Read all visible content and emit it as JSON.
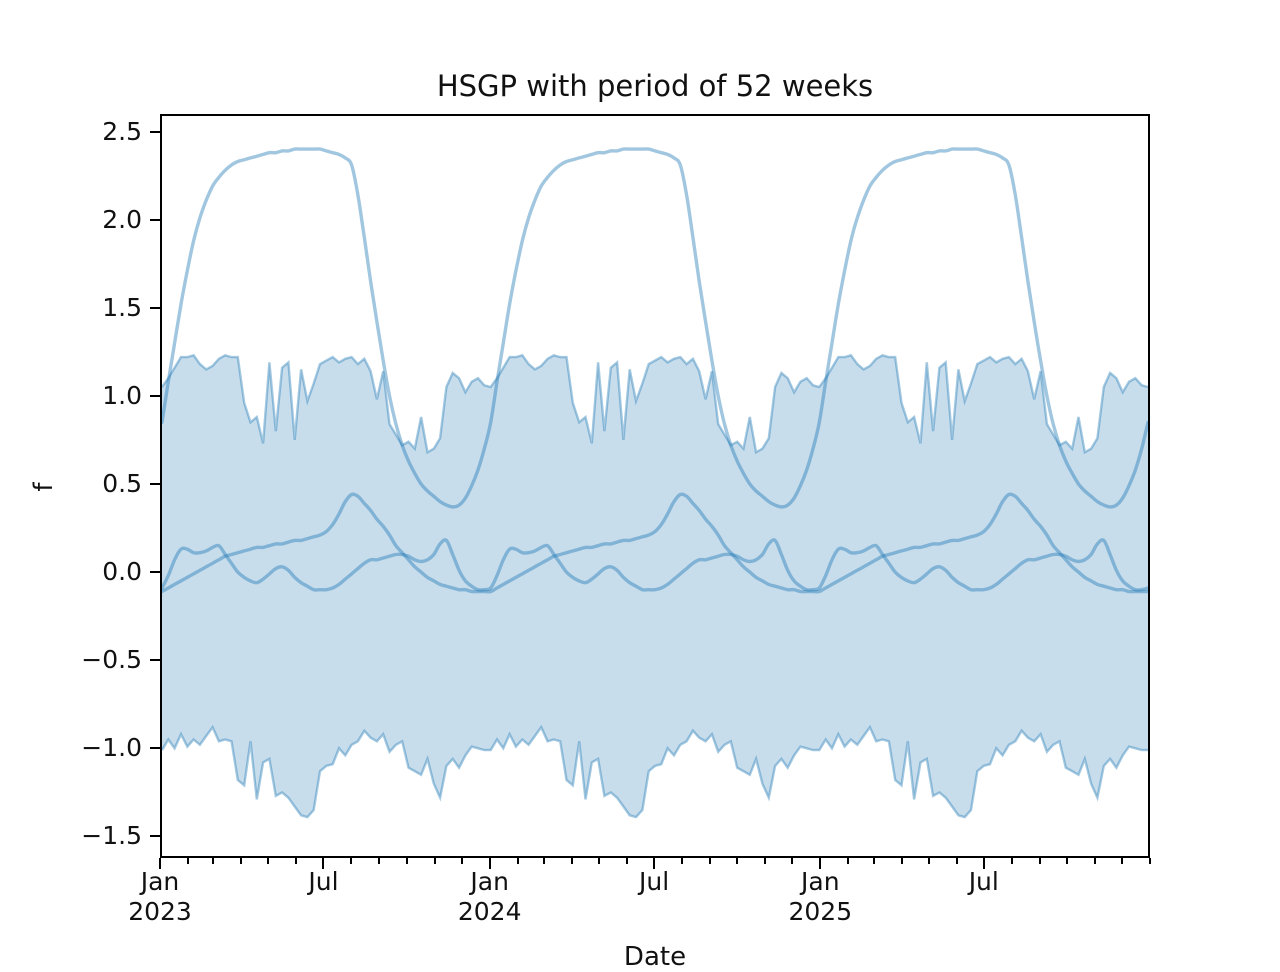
{
  "figure": {
    "title": "HSGP with period of 52 weeks",
    "xlabel": "Date",
    "ylabel": "f"
  },
  "axes": {
    "y_ticks": [
      {
        "label": "2.5",
        "value": 2.5
      },
      {
        "label": "2.0",
        "value": 2.0
      },
      {
        "label": "1.5",
        "value": 1.5
      },
      {
        "label": "1.0",
        "value": 1.0
      },
      {
        "label": "0.5",
        "value": 0.5
      },
      {
        "label": "0.0",
        "value": 0.0
      },
      {
        "label": "−0.5",
        "value": -0.5
      },
      {
        "label": "−1.0",
        "value": -1.0
      },
      {
        "label": "−1.5",
        "value": -1.5
      }
    ],
    "x_major_ticks": [
      {
        "month_index": 0,
        "lines": [
          "Jan",
          "2023"
        ]
      },
      {
        "month_index": 6,
        "lines": [
          "Jul"
        ]
      },
      {
        "month_index": 12,
        "lines": [
          "Jan",
          "2024"
        ]
      },
      {
        "month_index": 18,
        "lines": [
          "Jul"
        ]
      },
      {
        "month_index": 24,
        "lines": [
          "Jan",
          "2025"
        ]
      },
      {
        "month_index": 30,
        "lines": [
          "Jul"
        ]
      }
    ],
    "month_lengths": [
      31,
      28,
      31,
      30,
      31,
      30,
      31,
      31,
      30,
      31,
      30,
      31,
      31,
      29,
      31,
      30,
      31,
      30,
      31,
      31,
      30,
      31,
      30,
      31,
      31,
      28,
      31,
      30,
      31,
      30,
      31,
      31,
      30,
      31,
      30,
      31
    ],
    "ylim": [
      -1.611,
      2.588
    ],
    "grid": false,
    "legend": "none"
  },
  "chart_data": {
    "type": "line",
    "title": "HSGP with period of 52 weeks",
    "xlabel": "Date",
    "ylabel": "f",
    "x_start": "Jan 2023",
    "x_end": "Dec 2025",
    "period_weeks": 52,
    "n_periods": 3,
    "x_unit": "weeks (one 52-week period per array, tiled 3 times)",
    "band": {
      "name": "hdi-band",
      "upper": [
        1.05,
        1.1,
        1.16,
        1.22,
        1.22,
        1.23,
        1.18,
        1.15,
        1.17,
        1.21,
        1.23,
        1.22,
        1.22,
        0.96,
        0.85,
        0.88,
        0.73,
        1.19,
        0.8,
        1.16,
        1.19,
        0.75,
        1.15,
        0.97,
        1.07,
        1.18,
        1.2,
        1.22,
        1.19,
        1.21,
        1.22,
        1.18,
        1.21,
        1.14,
        0.98,
        1.14,
        0.84,
        0.78,
        0.72,
        0.74,
        0.7,
        0.88,
        0.68,
        0.7,
        0.76,
        1.05,
        1.13,
        1.1,
        1.02,
        1.08,
        1.1,
        1.06
      ],
      "lower": [
        -1.01,
        -0.95,
        -1.0,
        -0.92,
        -0.99,
        -0.95,
        -0.98,
        -0.93,
        -0.88,
        -0.96,
        -0.95,
        -0.96,
        -1.18,
        -1.21,
        -0.96,
        -1.29,
        -1.08,
        -1.06,
        -1.27,
        -1.25,
        -1.28,
        -1.33,
        -1.38,
        -1.39,
        -1.35,
        -1.13,
        -1.1,
        -1.09,
        -1.0,
        -1.04,
        -0.98,
        -0.96,
        -0.9,
        -0.94,
        -0.96,
        -0.92,
        -1.02,
        -0.98,
        -0.96,
        -1.11,
        -1.13,
        -1.15,
        -1.06,
        -1.2,
        -1.28,
        -1.1,
        -1.06,
        -1.11,
        -1.04,
        -0.99,
        -1.0,
        -1.01
      ]
    },
    "series": [
      {
        "name": "gp-sample-large",
        "values": [
          0.85,
          1.08,
          1.3,
          1.52,
          1.71,
          1.88,
          2.01,
          2.11,
          2.19,
          2.24,
          2.28,
          2.31,
          2.33,
          2.34,
          2.35,
          2.36,
          2.37,
          2.38,
          2.38,
          2.39,
          2.39,
          2.4,
          2.4,
          2.4,
          2.4,
          2.4,
          2.39,
          2.38,
          2.37,
          2.35,
          2.31,
          2.14,
          1.9,
          1.65,
          1.42,
          1.2,
          1.0,
          0.84,
          0.72,
          0.63,
          0.56,
          0.5,
          0.46,
          0.43,
          0.4,
          0.38,
          0.37,
          0.38,
          0.42,
          0.49,
          0.58,
          0.7
        ]
      },
      {
        "name": "gp-sample-medium",
        "values": [
          -0.11,
          -0.09,
          -0.07,
          -0.05,
          -0.03,
          -0.01,
          0.01,
          0.03,
          0.05,
          0.07,
          0.09,
          0.1,
          0.11,
          0.12,
          0.13,
          0.14,
          0.14,
          0.15,
          0.16,
          0.16,
          0.17,
          0.18,
          0.18,
          0.19,
          0.2,
          0.21,
          0.23,
          0.27,
          0.33,
          0.4,
          0.44,
          0.43,
          0.39,
          0.35,
          0.3,
          0.26,
          0.21,
          0.15,
          0.11,
          0.07,
          0.03,
          0.0,
          -0.03,
          -0.05,
          -0.07,
          -0.08,
          -0.09,
          -0.1,
          -0.1,
          -0.11,
          -0.11,
          -0.11
        ]
      },
      {
        "name": "gp-sample-small",
        "values": [
          -0.09,
          -0.02,
          0.07,
          0.13,
          0.13,
          0.11,
          0.11,
          0.12,
          0.14,
          0.15,
          0.1,
          0.05,
          0.0,
          -0.03,
          -0.05,
          -0.06,
          -0.04,
          -0.01,
          0.02,
          0.03,
          0.01,
          -0.03,
          -0.06,
          -0.08,
          -0.1,
          -0.1,
          -0.1,
          -0.09,
          -0.07,
          -0.04,
          -0.01,
          0.02,
          0.05,
          0.07,
          0.07,
          0.08,
          0.09,
          0.1,
          0.1,
          0.09,
          0.07,
          0.06,
          0.07,
          0.1,
          0.16,
          0.18,
          0.1,
          0.01,
          -0.05,
          -0.08,
          -0.1,
          -0.1
        ]
      }
    ],
    "colors": {
      "base": "#1f77b4",
      "sample_line": "rgba(31,119,180,0.42)",
      "band_fill": "rgba(31,119,180,0.25)",
      "band_edge": "rgba(31,119,180,0.40)",
      "text": "#111111",
      "spine": "#000000"
    },
    "legend_position": "none"
  }
}
